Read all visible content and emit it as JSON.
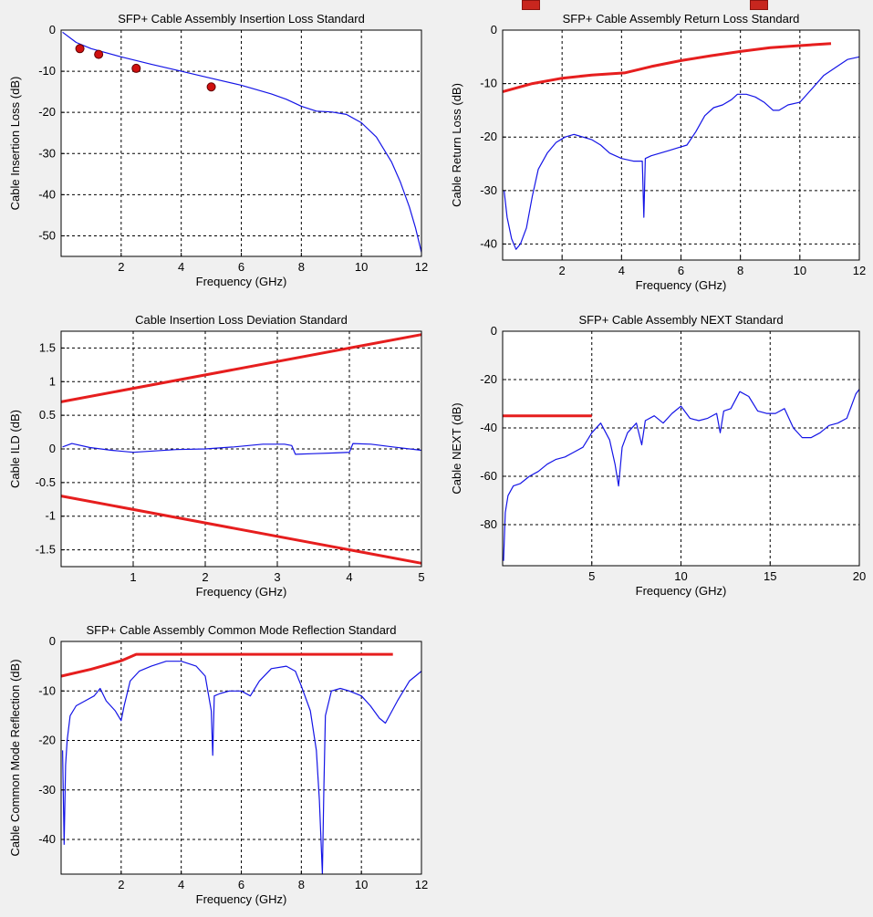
{
  "colors": {
    "background": "#f0f0f0",
    "plot_bg": "#ffffff",
    "measured": "#1414e6",
    "limit": "#e61e1e",
    "grid": "#000000"
  },
  "chart_data": [
    {
      "id": "insertion-loss",
      "type": "line",
      "title": "SFP+ Cable Assembly Insertion Loss Standard",
      "xlabel": "Frequency (GHz)",
      "ylabel": "Cable Insertion Loss (dB)",
      "xlim": [
        0,
        12
      ],
      "ylim": [
        -55,
        0
      ],
      "xticks": [
        2,
        4,
        6,
        8,
        10,
        12
      ],
      "yticks": [
        0,
        -10,
        -20,
        -30,
        -40,
        -50
      ],
      "grid": true,
      "series": [
        {
          "role": "measured",
          "x": [
            0.05,
            0.5,
            1,
            2,
            3,
            4,
            5,
            6,
            7,
            7.5,
            8,
            8.5,
            9,
            9.5,
            10,
            10.5,
            11,
            11.3,
            11.6,
            11.8,
            12
          ],
          "y": [
            -0.5,
            -3,
            -4.5,
            -6.5,
            -8.3,
            -10,
            -11.7,
            -13.4,
            -15.5,
            -16.8,
            -18.5,
            -19.7,
            -19.9,
            -20.5,
            -22.5,
            -26,
            -32,
            -37,
            -43,
            -48,
            -54
          ]
        },
        {
          "role": "limit-points",
          "mode": "markers",
          "x": [
            0.625,
            1.25,
            2.5,
            5.0
          ],
          "y": [
            -4.5,
            -5.9,
            -9.3,
            -13.8
          ]
        }
      ]
    },
    {
      "id": "return-loss",
      "type": "line",
      "title": "SFP+ Cable Assembly Return Loss Standard",
      "xlabel": "Frequency (GHz)",
      "ylabel": "Cable Return Loss (dB)",
      "xlim": [
        0,
        12
      ],
      "ylim": [
        -43,
        0
      ],
      "xticks": [
        2,
        4,
        6,
        8,
        10,
        12
      ],
      "yticks": [
        0,
        -10,
        -20,
        -30,
        -40
      ],
      "grid": true,
      "series": [
        {
          "role": "limit",
          "x": [
            0.01,
            1,
            2,
            3,
            4.1,
            5,
            6,
            7,
            8,
            9,
            10,
            11.05
          ],
          "y": [
            -11.5,
            -10,
            -9,
            -8.4,
            -8,
            -6.8,
            -5.7,
            -4.8,
            -4,
            -3.3,
            -2.9,
            -2.5
          ]
        },
        {
          "role": "measured",
          "x": [
            0.05,
            0.15,
            0.3,
            0.45,
            0.6,
            0.8,
            1.0,
            1.2,
            1.5,
            1.8,
            2.1,
            2.4,
            2.7,
            3.0,
            3.3,
            3.6,
            4.0,
            4.4,
            4.7,
            4.75,
            4.8,
            5.0,
            5.3,
            5.6,
            5.9,
            6.2,
            6.5,
            6.8,
            7.1,
            7.4,
            7.7,
            7.9,
            8.2,
            8.5,
            8.8,
            9.1,
            9.3,
            9.6,
            10.0,
            10.4,
            10.8,
            11.2,
            11.6,
            12.0
          ],
          "y": [
            -30,
            -35,
            -39,
            -41,
            -40,
            -37,
            -31,
            -26,
            -23,
            -21,
            -20,
            -19.5,
            -20,
            -20.5,
            -21.5,
            -23,
            -24,
            -24.5,
            -24.5,
            -35,
            -24,
            -23.5,
            -23,
            -22.5,
            -22,
            -21.5,
            -19,
            -16,
            -14.5,
            -14,
            -13,
            -12,
            -12,
            -12.5,
            -13.5,
            -15,
            -15,
            -14,
            -13.5,
            -11,
            -8.5,
            -7,
            -5.5,
            -5
          ]
        }
      ]
    },
    {
      "id": "ild",
      "type": "line",
      "title": "Cable Insertion Loss Deviation Standard",
      "xlabel": "Frequency (GHz)",
      "ylabel": "Cable ILD (dB)",
      "xlim": [
        0,
        5
      ],
      "ylim": [
        -1.75,
        1.75
      ],
      "xticks": [
        1,
        2,
        3,
        4,
        5
      ],
      "yticks": [
        1.5,
        1,
        0.5,
        0,
        -0.5,
        -1,
        -1.5
      ],
      "ytick_labels": [
        "1.5",
        "1",
        "0.5",
        "0",
        "-0.5",
        "-1",
        "-1.5"
      ],
      "grid": true,
      "series": [
        {
          "role": "limit-upper",
          "x": [
            0,
            5
          ],
          "y": [
            0.7,
            1.7
          ]
        },
        {
          "role": "limit-lower",
          "x": [
            0,
            5
          ],
          "y": [
            -0.7,
            -1.7
          ]
        },
        {
          "role": "measured",
          "x": [
            0.02,
            0.15,
            0.4,
            0.7,
            1.0,
            1.3,
            1.6,
            2.0,
            2.4,
            2.8,
            3.1,
            3.2,
            3.25,
            3.5,
            3.8,
            4.0,
            4.05,
            4.3,
            4.6,
            5.0
          ],
          "y": [
            0.03,
            0.08,
            0.02,
            -0.02,
            -0.05,
            -0.03,
            -0.01,
            0.0,
            0.03,
            0.07,
            0.07,
            0.05,
            -0.08,
            -0.07,
            -0.06,
            -0.05,
            0.08,
            0.07,
            0.03,
            -0.02
          ]
        }
      ]
    },
    {
      "id": "next",
      "type": "line",
      "title": "SFP+ Cable Assembly NEXT Standard",
      "xlabel": "Frequency (GHz)",
      "ylabel": "Cable NEXT (dB)",
      "xlim": [
        0,
        20
      ],
      "ylim": [
        -97,
        0
      ],
      "xticks": [
        5,
        10,
        15,
        20
      ],
      "yticks": [
        0,
        -20,
        -40,
        -60,
        -80
      ],
      "grid": true,
      "series": [
        {
          "role": "limit",
          "x": [
            0,
            5
          ],
          "y": [
            -35,
            -35
          ]
        },
        {
          "role": "measured",
          "x": [
            0.05,
            0.15,
            0.3,
            0.6,
            1.0,
            1.5,
            2,
            2.5,
            3,
            3.5,
            4,
            4.5,
            5,
            5.5,
            6,
            6.3,
            6.5,
            6.7,
            7,
            7.5,
            7.8,
            8,
            8.5,
            9,
            9.5,
            10,
            10.5,
            11,
            11.5,
            12,
            12.2,
            12.4,
            12.8,
            13.3,
            13.8,
            14.3,
            14.8,
            15.3,
            15.8,
            16.3,
            16.8,
            17.3,
            17.8,
            18.3,
            18.8,
            19.3,
            19.8,
            20.0
          ],
          "y": [
            -95,
            -75,
            -68,
            -64,
            -63,
            -60,
            -58,
            -55,
            -53,
            -52,
            -50,
            -48,
            -42,
            -38,
            -45,
            -55,
            -64,
            -48,
            -42,
            -38,
            -47,
            -37,
            -35,
            -38,
            -34,
            -31,
            -36,
            -37,
            -36,
            -34,
            -42,
            -33,
            -32,
            -25,
            -27,
            -33,
            -34,
            -34,
            -32,
            -40,
            -44,
            -44,
            -42,
            -39,
            -38,
            -36,
            -26,
            -24
          ]
        }
      ]
    },
    {
      "id": "common-mode-reflection",
      "type": "line",
      "title": "SFP+ Cable Assembly Common Mode Reflection Standard",
      "xlabel": "Frequency (GHz)",
      "ylabel": "Cable Common Mode Reflection (dB)",
      "xlim": [
        0,
        12
      ],
      "ylim": [
        -47,
        0
      ],
      "xticks": [
        2,
        4,
        6,
        8,
        10,
        12
      ],
      "yticks": [
        0,
        -10,
        -20,
        -30,
        -40
      ],
      "grid": true,
      "series": [
        {
          "role": "limit",
          "x": [
            0.01,
            1,
            2,
            2.5,
            11.05
          ],
          "y": [
            -7,
            -5.6,
            -3.9,
            -2.6,
            -2.6
          ]
        },
        {
          "role": "measured",
          "x": [
            0.05,
            0.1,
            0.15,
            0.2,
            0.3,
            0.5,
            0.8,
            1.1,
            1.3,
            1.5,
            1.8,
            2.0,
            2.1,
            2.3,
            2.6,
            3.0,
            3.5,
            4.0,
            4.5,
            4.8,
            5.0,
            5.05,
            5.1,
            5.3,
            5.6,
            6.0,
            6.3,
            6.6,
            7.0,
            7.5,
            7.8,
            8.0,
            8.3,
            8.5,
            8.6,
            8.7,
            8.75,
            8.8,
            9.0,
            9.3,
            9.6,
            10.0,
            10.3,
            10.6,
            10.8,
            11.2,
            11.6,
            12.0
          ],
          "y": [
            -22,
            -41,
            -25,
            -20,
            -15,
            -13,
            -12,
            -11,
            -9.5,
            -12,
            -14,
            -16,
            -13,
            -8,
            -6,
            -5,
            -4,
            -4,
            -5,
            -7,
            -14,
            -23,
            -11,
            -10.5,
            -10,
            -10,
            -11,
            -8,
            -5.5,
            -5,
            -6,
            -9,
            -14,
            -22,
            -32,
            -47,
            -30,
            -15,
            -10,
            -9.5,
            -10,
            -11,
            -13,
            -15.5,
            -16.5,
            -12,
            -8,
            -6
          ]
        }
      ]
    }
  ]
}
